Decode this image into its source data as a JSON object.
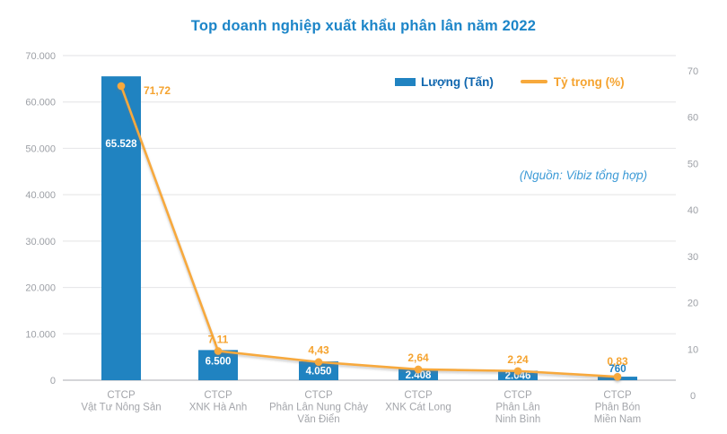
{
  "chart_data": {
    "type": "bar+line",
    "title": "Top doanh nghiệp xuất khẩu phân lân năm 2022",
    "source_note": "(Nguồn: Vibiz tổng hợp)",
    "legend_position": "top-right",
    "grid": "horizontal",
    "categories": [
      [
        "CTCP",
        "Vật Tư Nông Sản"
      ],
      [
        "CTCP",
        "XNK Hà Anh"
      ],
      [
        "CTCP",
        "Phân Lân Nung Chảy",
        "Văn Điển"
      ],
      [
        "CTCP",
        "XNK Cát Long"
      ],
      [
        "CTCP",
        "Phân Lân",
        "Ninh Bình"
      ],
      [
        "CTCP",
        "Phân Bón",
        "Miền Nam"
      ]
    ],
    "series": [
      {
        "name": "Lượng (Tấn)",
        "type": "bar",
        "axis": "left",
        "values": [
          65528,
          6500,
          4050,
          2408,
          2046,
          760
        ],
        "value_labels": [
          "65.528",
          "6.500",
          "4.050",
          "2.408",
          "2.046",
          "760"
        ]
      },
      {
        "name": "Tỷ trọng (%)",
        "type": "line",
        "axis": "right",
        "values": [
          71.72,
          7.11,
          4.43,
          2.64,
          2.24,
          0.83
        ],
        "value_labels": [
          "71,72",
          "7,11",
          "4,43",
          "2,64",
          "2,24",
          "0,83"
        ]
      }
    ],
    "left_axis": {
      "min": 0,
      "max": 70000,
      "tick_labels": [
        "0",
        "10.000",
        "20.000",
        "30.000",
        "40.000",
        "50.000",
        "60.000",
        "70.000"
      ]
    },
    "right_axis": {
      "min": 0,
      "max": 70,
      "tick_labels": [
        "0",
        "10",
        "20",
        "30",
        "40",
        "50",
        "60",
        "70"
      ]
    },
    "colors": {
      "bar": "#2083C1",
      "line": "#F7A93C",
      "line_label": "#F5A32F",
      "title": "#1C85C8",
      "legend_bar_text": "#0F66AE",
      "source": "#3C9AD6",
      "grid": "#E8E8EA",
      "baseline": "#BBBCC0",
      "tick_text": "#9DA0A6",
      "category_text": "#A3A5AA",
      "bar_value_in": "#FFFFFF",
      "bar_value_out": "#1E7FC2"
    }
  }
}
